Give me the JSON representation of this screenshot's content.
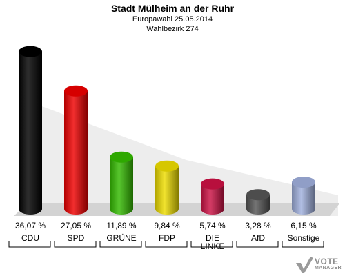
{
  "chart_data": {
    "type": "bar",
    "title": "Stadt Mülheim an der Ruhr",
    "subtitle_lines": [
      "Europawahl 25.05.2014",
      "Wahlbezirk 274"
    ],
    "value_unit": "%",
    "ylim": [
      0,
      40
    ],
    "series": [
      {
        "categories": [
          "CDU",
          "SPD",
          "GRÜNE",
          "FDP",
          "DIE LINKE",
          "AfD",
          "Sonstige"
        ],
        "category_lines": [
          [
            "CDU"
          ],
          [
            "SPD"
          ],
          [
            "GRÜNE"
          ],
          [
            "FDP"
          ],
          [
            "DIE",
            "LINKE"
          ],
          [
            "AfD"
          ],
          [
            "Sonstige"
          ]
        ],
        "values": [
          36.07,
          27.05,
          11.89,
          9.84,
          5.74,
          3.28,
          6.15
        ],
        "value_labels": [
          "36,07 %",
          "27,05 %",
          "11,89 %",
          "9,84 %",
          "5,74 %",
          "3,28 %",
          "6,15 %"
        ],
        "colors": [
          "#000000",
          "#ee0000",
          "#33bb00",
          "#eedd00",
          "#cc1144",
          "#555555",
          "#a0b0dd"
        ]
      }
    ]
  },
  "watermark": {
    "lines": [
      "VOTE",
      "MANAGER"
    ],
    "icon": "vote-manager-logo-icon"
  }
}
